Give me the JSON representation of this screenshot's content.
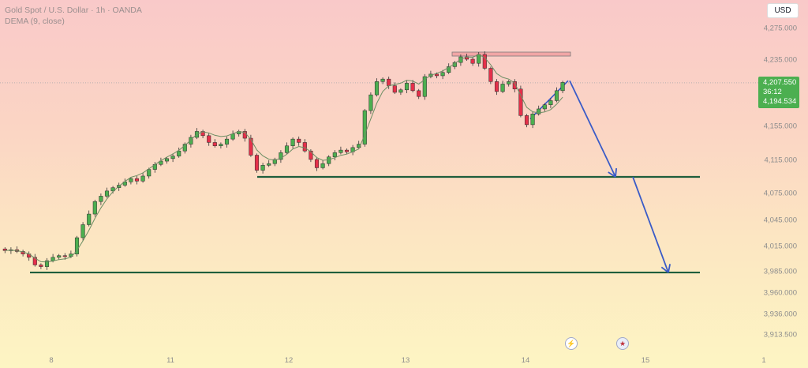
{
  "header": {
    "title": "Gold Spot / U.S. Dollar · 1h · OANDA",
    "indicator": "DEMA (9, close)"
  },
  "currency_button": "USD",
  "price_tag": {
    "price": "4,207.550",
    "countdown": "36:12",
    "dema_value": "4,194.534"
  },
  "events": {
    "icons": [
      "lightning-icon",
      "us-flag-icon"
    ]
  },
  "colors": {
    "up": "#4caf50",
    "down": "#e5304a",
    "dema": "#6d8f64",
    "level": "#1e5e3c",
    "arrow": "#3a5bc7",
    "resistance": "#f2a6a6"
  },
  "chart_data": {
    "type": "candlestick",
    "title": "Gold Spot / U.S. Dollar · 1h · OANDA",
    "symbol": "XAUUSD",
    "timeframe": "1h",
    "y_axis": {
      "ticks": [
        4275,
        4235,
        4155,
        4115,
        4075,
        4045,
        4015,
        3985,
        3960,
        3936,
        3913.5
      ],
      "tick_labels": [
        "4,275.000",
        "4,235.000",
        "4,155.000",
        "4,115.000",
        "4,075.000",
        "4,045.000",
        "4,015.000",
        "3,985.000",
        "3,960.000",
        "3,936.000",
        "3,913.500"
      ],
      "range": [
        3905,
        4290
      ]
    },
    "x_axis": {
      "tick_labels": [
        "8",
        "11",
        "12",
        "13",
        "14",
        "15",
        "1"
      ]
    },
    "last_price": 4207.55,
    "dema_last": 4194.534,
    "support_levels": [
      4095,
      3984
    ],
    "resistance_zone": [
      4240,
      4245
    ],
    "projection_arrows": [
      {
        "from": 4210,
        "to": 4095
      },
      {
        "from": 4095,
        "to": 3984
      }
    ],
    "close_path": [
      4010,
      4011,
      4009,
      4006,
      4002,
      3993,
      3991,
      3998,
      4002,
      4004,
      4003,
      4006,
      4025,
      4040,
      4052,
      4066,
      4072,
      4078,
      4082,
      4085,
      4089,
      4093,
      4090,
      4096,
      4104,
      4110,
      4114,
      4117,
      4120,
      4126,
      4134,
      4142,
      4149,
      4144,
      4136,
      4132,
      4134,
      4140,
      4146,
      4149,
      4141,
      4121,
      4103,
      4109,
      4111,
      4116,
      4124,
      4132,
      4140,
      4136,
      4126,
      4116,
      4106,
      4111,
      4119,
      4124,
      4127,
      4125,
      4130,
      4134,
      4174,
      4193,
      4209,
      4212,
      4204,
      4196,
      4199,
      4207,
      4198,
      4191,
      4215,
      4218,
      4216,
      4220,
      4227,
      4232,
      4239,
      4236,
      4231,
      4242,
      4225,
      4209,
      4197,
      4206,
      4209,
      4200,
      4168,
      4157,
      4170,
      4176,
      4181,
      4186,
      4198,
      4208
    ]
  }
}
